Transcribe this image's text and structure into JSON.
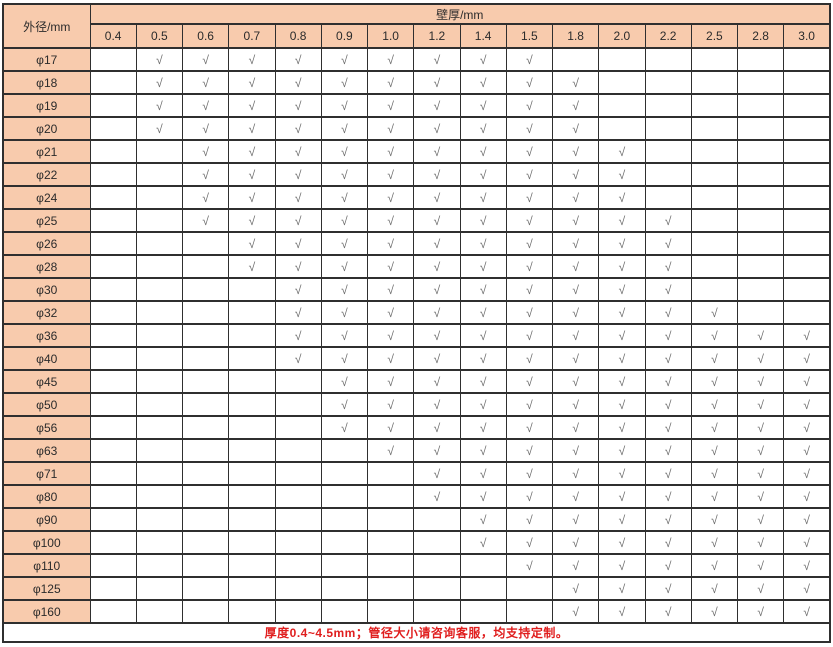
{
  "chart_data": {
    "type": "table",
    "corner_header": "外径/mm",
    "column_group_header": "壁厚/mm",
    "columns": [
      "0.4",
      "0.5",
      "0.6",
      "0.7",
      "0.8",
      "0.9",
      "1.0",
      "1.2",
      "1.4",
      "1.5",
      "1.8",
      "2.0",
      "2.2",
      "2.5",
      "2.8",
      "3.0"
    ],
    "check_glyph": "√",
    "rows": [
      {
        "label": "φ17",
        "available": [
          0,
          1,
          1,
          1,
          1,
          1,
          1,
          1,
          1,
          1,
          0,
          0,
          0,
          0,
          0,
          0
        ]
      },
      {
        "label": "φ18",
        "available": [
          0,
          1,
          1,
          1,
          1,
          1,
          1,
          1,
          1,
          1,
          1,
          0,
          0,
          0,
          0,
          0
        ]
      },
      {
        "label": "φ19",
        "available": [
          0,
          1,
          1,
          1,
          1,
          1,
          1,
          1,
          1,
          1,
          1,
          0,
          0,
          0,
          0,
          0
        ]
      },
      {
        "label": "φ20",
        "available": [
          0,
          1,
          1,
          1,
          1,
          1,
          1,
          1,
          1,
          1,
          1,
          0,
          0,
          0,
          0,
          0
        ]
      },
      {
        "label": "φ21",
        "available": [
          0,
          0,
          1,
          1,
          1,
          1,
          1,
          1,
          1,
          1,
          1,
          1,
          0,
          0,
          0,
          0
        ]
      },
      {
        "label": "φ22",
        "available": [
          0,
          0,
          1,
          1,
          1,
          1,
          1,
          1,
          1,
          1,
          1,
          1,
          0,
          0,
          0,
          0
        ]
      },
      {
        "label": "φ24",
        "available": [
          0,
          0,
          1,
          1,
          1,
          1,
          1,
          1,
          1,
          1,
          1,
          1,
          0,
          0,
          0,
          0
        ]
      },
      {
        "label": "φ25",
        "available": [
          0,
          0,
          1,
          1,
          1,
          1,
          1,
          1,
          1,
          1,
          1,
          1,
          1,
          0,
          0,
          0
        ]
      },
      {
        "label": "φ26",
        "available": [
          0,
          0,
          0,
          1,
          1,
          1,
          1,
          1,
          1,
          1,
          1,
          1,
          1,
          0,
          0,
          0
        ]
      },
      {
        "label": "φ28",
        "available": [
          0,
          0,
          0,
          1,
          1,
          1,
          1,
          1,
          1,
          1,
          1,
          1,
          1,
          0,
          0,
          0
        ]
      },
      {
        "label": "φ30",
        "available": [
          0,
          0,
          0,
          0,
          1,
          1,
          1,
          1,
          1,
          1,
          1,
          1,
          1,
          0,
          0,
          0
        ]
      },
      {
        "label": "φ32",
        "available": [
          0,
          0,
          0,
          0,
          1,
          1,
          1,
          1,
          1,
          1,
          1,
          1,
          1,
          1,
          0,
          0
        ]
      },
      {
        "label": "φ36",
        "available": [
          0,
          0,
          0,
          0,
          1,
          1,
          1,
          1,
          1,
          1,
          1,
          1,
          1,
          1,
          1,
          1
        ]
      },
      {
        "label": "φ40",
        "available": [
          0,
          0,
          0,
          0,
          1,
          1,
          1,
          1,
          1,
          1,
          1,
          1,
          1,
          1,
          1,
          1
        ]
      },
      {
        "label": "φ45",
        "available": [
          0,
          0,
          0,
          0,
          0,
          1,
          1,
          1,
          1,
          1,
          1,
          1,
          1,
          1,
          1,
          1
        ]
      },
      {
        "label": "φ50",
        "available": [
          0,
          0,
          0,
          0,
          0,
          1,
          1,
          1,
          1,
          1,
          1,
          1,
          1,
          1,
          1,
          1
        ]
      },
      {
        "label": "φ56",
        "available": [
          0,
          0,
          0,
          0,
          0,
          1,
          1,
          1,
          1,
          1,
          1,
          1,
          1,
          1,
          1,
          1
        ]
      },
      {
        "label": "φ63",
        "available": [
          0,
          0,
          0,
          0,
          0,
          0,
          1,
          1,
          1,
          1,
          1,
          1,
          1,
          1,
          1,
          1
        ]
      },
      {
        "label": "φ71",
        "available": [
          0,
          0,
          0,
          0,
          0,
          0,
          0,
          1,
          1,
          1,
          1,
          1,
          1,
          1,
          1,
          1
        ]
      },
      {
        "label": "φ80",
        "available": [
          0,
          0,
          0,
          0,
          0,
          0,
          0,
          1,
          1,
          1,
          1,
          1,
          1,
          1,
          1,
          1
        ]
      },
      {
        "label": "φ90",
        "available": [
          0,
          0,
          0,
          0,
          0,
          0,
          0,
          0,
          1,
          1,
          1,
          1,
          1,
          1,
          1,
          1
        ]
      },
      {
        "label": "φ100",
        "available": [
          0,
          0,
          0,
          0,
          0,
          0,
          0,
          0,
          1,
          1,
          1,
          1,
          1,
          1,
          1,
          1
        ]
      },
      {
        "label": "φ110",
        "available": [
          0,
          0,
          0,
          0,
          0,
          0,
          0,
          0,
          0,
          1,
          1,
          1,
          1,
          1,
          1,
          1
        ]
      },
      {
        "label": "φ125",
        "available": [
          0,
          0,
          0,
          0,
          0,
          0,
          0,
          0,
          0,
          0,
          1,
          1,
          1,
          1,
          1,
          1
        ]
      },
      {
        "label": "φ160",
        "available": [
          0,
          0,
          0,
          0,
          0,
          0,
          0,
          0,
          0,
          0,
          1,
          1,
          1,
          1,
          1,
          1
        ]
      }
    ],
    "footer_note": "厚度0.4~4.5mm；管径大小请咨询客服，均支持定制。"
  },
  "colors": {
    "header_fill": "#F8CBAD",
    "grid_border": "#2f2f2f",
    "check": "#6a6a6a",
    "text": "#333333",
    "note_red": "#e01e1e",
    "cell_bg": "#ffffff"
  }
}
